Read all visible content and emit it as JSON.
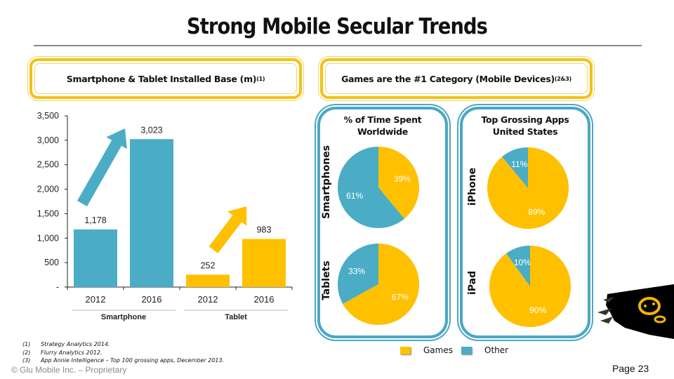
{
  "title": "Strong Mobile Secular Trends",
  "left_header": {
    "text": "Smartphone & Tablet Installed Base (m)",
    "sup": "(1)"
  },
  "right_header": {
    "text": "Games are the #1 Category (Mobile Devices)",
    "sup": "(2&3)"
  },
  "colors": {
    "blue": "#4bacc6",
    "gold": "#ffc000",
    "yellow_border": "#f2c11a",
    "panel_border": "#4aa7c5"
  },
  "chart_data": [
    {
      "type": "bar",
      "title": "Smartphone & Tablet Installed Base (m)",
      "xlabel": "",
      "ylabel": "",
      "ylim": [
        0,
        3500
      ],
      "yticks": [
        "-",
        "500",
        "1,000",
        "1,500",
        "2,000",
        "2,500",
        "3,000",
        "3,500"
      ],
      "ytick_values": [
        0,
        500,
        1000,
        1500,
        2000,
        2500,
        3000,
        3500
      ],
      "categories": [
        "2012",
        "2016",
        "2012",
        "2016"
      ],
      "groups": [
        "Smartphone",
        "Tablet"
      ],
      "values": [
        1178,
        3023,
        252,
        983
      ],
      "data_labels": [
        "1,178",
        "3,023",
        "252",
        "983"
      ],
      "bar_colors": [
        "#4bacc6",
        "#4bacc6",
        "#ffc000",
        "#ffc000"
      ],
      "annotations": [
        "blue up-arrow over Smartphone growth",
        "gold up-arrow over Tablet growth"
      ],
      "grid": false
    },
    {
      "type": "pie",
      "panel": "% of Time Spent Worldwide",
      "title": "Smartphones",
      "slices": [
        {
          "name": "Games",
          "value": 39,
          "label": "39%"
        },
        {
          "name": "Other",
          "value": 61,
          "label": "61%"
        }
      ]
    },
    {
      "type": "pie",
      "panel": "% of Time Spent Worldwide",
      "title": "Tablets",
      "slices": [
        {
          "name": "Games",
          "value": 67,
          "label": "67%"
        },
        {
          "name": "Other",
          "value": 33,
          "label": "33%"
        }
      ]
    },
    {
      "type": "pie",
      "panel": "Top Grossing Apps United States",
      "title": "iPhone",
      "slices": [
        {
          "name": "Games",
          "value": 89,
          "label": "89%"
        },
        {
          "name": "Other",
          "value": 11,
          "label": "11%"
        }
      ]
    },
    {
      "type": "pie",
      "panel": "Top Grossing Apps United States",
      "title": "iPad",
      "slices": [
        {
          "name": "Games",
          "value": 90,
          "label": "90%"
        },
        {
          "name": "Other",
          "value": 10,
          "label": "10%"
        }
      ]
    }
  ],
  "panels": {
    "left": {
      "line1": "% of Time Spent",
      "line2": "Worldwide",
      "top_label": "Smartphones",
      "bottom_label": "Tablets"
    },
    "right": {
      "line1": "Top Grossing Apps",
      "line2": "United States",
      "top_label": "iPhone",
      "bottom_label": "iPad"
    }
  },
  "legend": [
    {
      "name": "Games",
      "color": "#ffc000"
    },
    {
      "name": "Other",
      "color": "#4bacc6"
    }
  ],
  "footnotes": [
    {
      "num": "(1)",
      "text": "Strategy Analytics 2014."
    },
    {
      "num": "(2)",
      "text": "Flurry Analytics 2012."
    },
    {
      "num": "(3)",
      "text": "App Annie Intelligence – Top 100 grossing apps, December 2013."
    }
  ],
  "copyright": "© Glu Mobile Inc. – Proprietary",
  "page": "Page 23"
}
